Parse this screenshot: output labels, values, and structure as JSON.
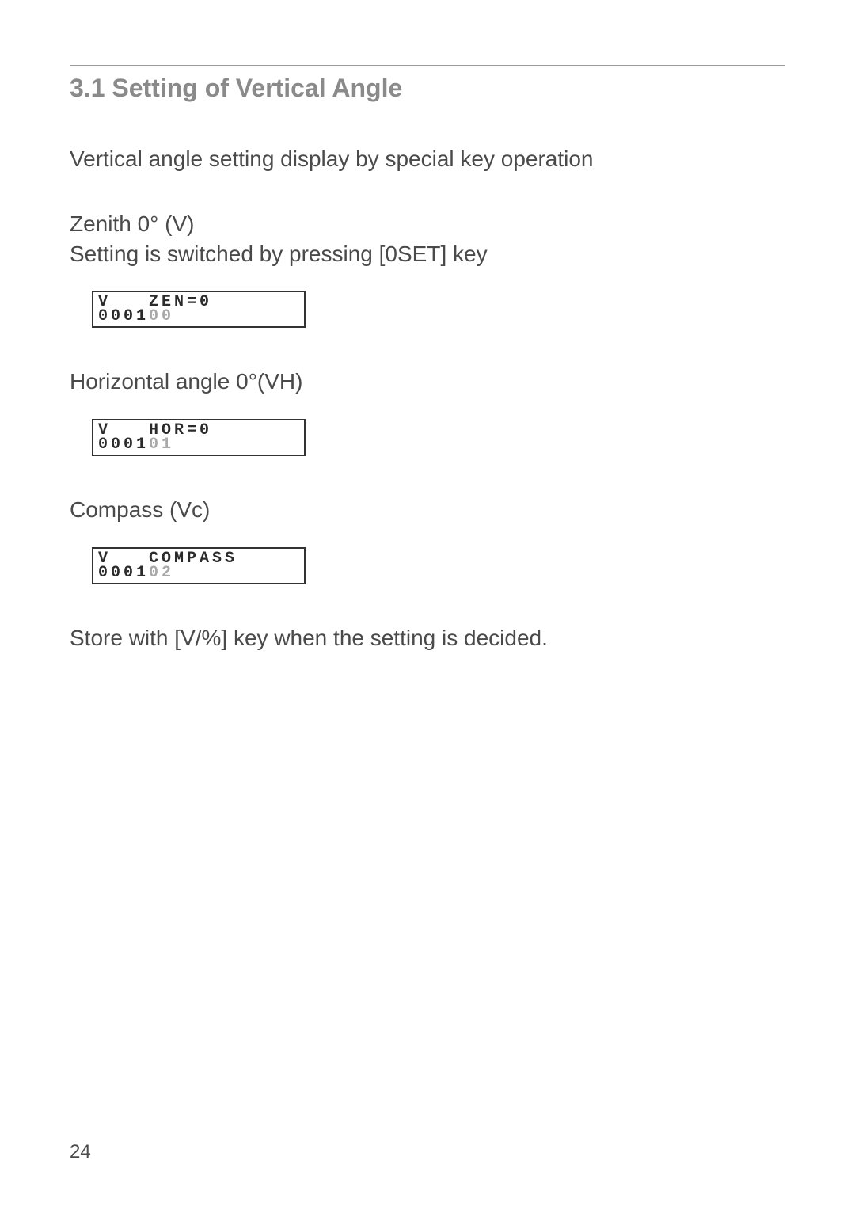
{
  "section": {
    "title": "3.1 Setting of Vertical Angle"
  },
  "paragraphs": {
    "intro": "Vertical angle setting display by special key operation",
    "zenith_label": "Zenith 0° (V)",
    "zenith_instruction": "Setting is switched by pressing [0SET] key",
    "horizontal_label": "Horizontal angle 0°(VH)",
    "compass_label": "Compass (Vc)",
    "store_instruction": "Store with [V/%] key when the setting is decided."
  },
  "displays": {
    "zenith": {
      "line1": "V   ZEN=0",
      "line2_prefix": "0001",
      "line2_suffix": "00"
    },
    "horizontal": {
      "line1": "V   HOR=0",
      "line2_prefix": "0001",
      "line2_suffix": "01"
    },
    "compass": {
      "line1": "V   COMPASS",
      "line2_prefix": "0001",
      "line2_suffix": "02"
    }
  },
  "page_number": "24",
  "colors": {
    "title_color": "#8a8a8a",
    "body_color": "#4a4a4a",
    "lcd_border": "#333333",
    "lcd_dim": "#a8a8a8",
    "rule_color": "#999999",
    "background": "#ffffff"
  },
  "fonts": {
    "title_size_pt": 24,
    "body_size_pt": 21,
    "lcd_size_pt": 15
  }
}
